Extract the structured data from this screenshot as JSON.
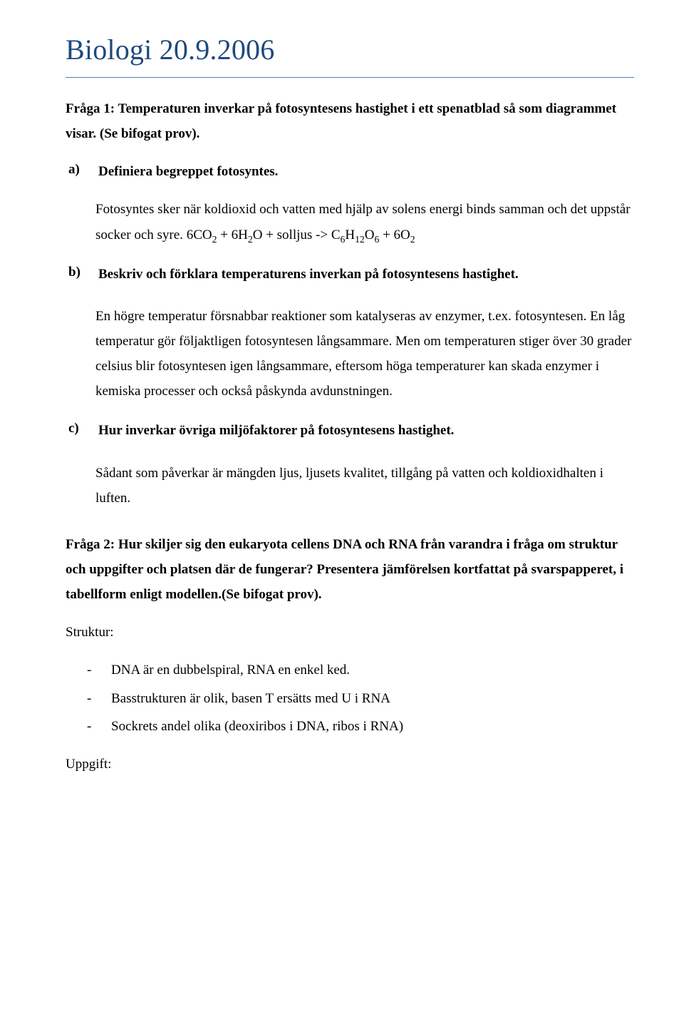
{
  "title": "Biologi 20.9.2006",
  "colors": {
    "title": "#1f497d",
    "rule": "#4f81bd",
    "text": "#000000",
    "background": "#ffffff"
  },
  "q1": {
    "heading": "Fråga 1: Temperaturen inverkar på fotosyntesens hastighet i ett spenatblad så som diagrammet visar. (Se bifogat prov).",
    "a": {
      "marker": "a)",
      "label": "Definiera begreppet fotosyntes.",
      "answer_pre": "Fotosyntes sker när koldioxid och vatten med hjälp av solens energi binds samman och det uppstår socker och syre. 6CO",
      "answer_post": ""
    },
    "b": {
      "marker": "b)",
      "label": "Beskriv och förklara temperaturens inverkan på fotosyntesens hastighet.",
      "answer": "En högre temperatur försnabbar reaktioner som katalyseras av enzymer, t.ex. fotosyntesen. En låg temperatur gör följaktligen fotosyntesen långsammare. Men om temperaturen stiger över 30 grader celsius blir fotosyntesen igen långsammare, eftersom höga temperaturer kan skada enzymer i kemiska processer och också påskynda avdunstningen."
    },
    "c": {
      "marker": "c)",
      "label": "Hur inverkar övriga miljöfaktorer på fotosyntesens hastighet.",
      "answer": "Sådant som påverkar är mängden ljus, ljusets kvalitet, tillgång på vatten och koldioxidhalten i luften."
    }
  },
  "q2": {
    "heading": "Fråga 2: Hur skiljer sig den eukaryota cellens DNA och RNA från varandra i fråga om struktur och uppgifter och platsen där de fungerar? Presentera jämförelsen kortfattat på svarspapperet, i tabellform enligt modellen.(Se bifogat prov).",
    "struktur_label": "Struktur:",
    "struktur_items": [
      "DNA är en dubbelspiral, RNA en enkel ked.",
      "Basstrukturen är olik, basen T ersätts med U i RNA",
      "Sockrets andel olika (deoxiribos i DNA, ribos i RNA)"
    ],
    "uppgift_label": "Uppgift:"
  },
  "formula": {
    "t1": "6CO",
    "s1": "2",
    "t2": " + 6H",
    "s2": "2",
    "t3": "O + solljus -> C",
    "s3": "6",
    "t4": "H",
    "s4": "12",
    "t5": "O",
    "s5": "6",
    "t6": " + 6O",
    "s6": "2"
  }
}
